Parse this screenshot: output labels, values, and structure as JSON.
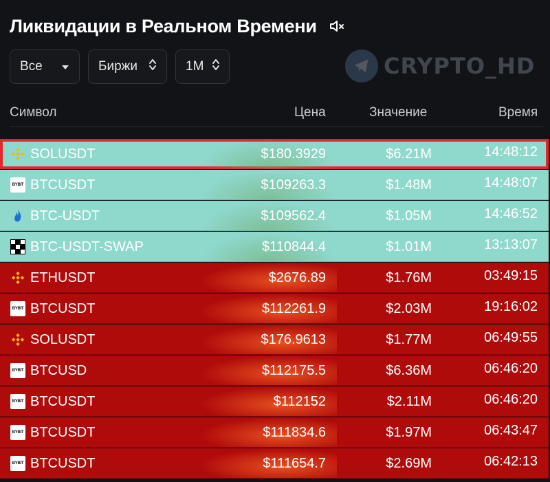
{
  "title": "Ликвидации в Реальном Времени",
  "sound_icon": "speaker-muted-icon",
  "filters": [
    {
      "label": "Все",
      "icon": "caret-down-icon"
    },
    {
      "label": "Биржи",
      "icon": "sort-updown-icon"
    },
    {
      "label": "1M",
      "icon": "sort-updown-icon"
    }
  ],
  "watermark": {
    "text": "CRYPTO_HD",
    "icon": "telegram-icon"
  },
  "columns": {
    "symbol": "Символ",
    "price": "Цена",
    "value": "Значение",
    "time": "Время"
  },
  "colors": {
    "long": "#8fd8cc",
    "short": "#b00b0b",
    "highlight_border": "#e8262a"
  },
  "rows": [
    {
      "exchange": "binance",
      "symbol": "SOLUSDT",
      "price": "$180.3929",
      "value": "$6.21M",
      "time": "14:48:12",
      "side": "long",
      "highlighted": true
    },
    {
      "exchange": "bybit",
      "symbol": "BTCUSDT",
      "price": "$109263.3",
      "value": "$1.48M",
      "time": "14:48:07",
      "side": "long"
    },
    {
      "exchange": "htx",
      "symbol": "BTC-USDT",
      "price": "$109562.4",
      "value": "$1.05M",
      "time": "14:46:52",
      "side": "long"
    },
    {
      "exchange": "okx",
      "symbol": "BTC-USDT-SWAP",
      "price": "$110844.4",
      "value": "$1.01M",
      "time": "13:13:07",
      "side": "long"
    },
    {
      "exchange": "binance",
      "symbol": "ETHUSDT",
      "price": "$2676.89",
      "value": "$1.76M",
      "time": "03:49:15",
      "side": "short"
    },
    {
      "exchange": "bybit",
      "symbol": "BTCUSDT",
      "price": "$112261.9",
      "value": "$2.03M",
      "time": "19:16:02",
      "side": "short"
    },
    {
      "exchange": "binance",
      "symbol": "SOLUSDT",
      "price": "$176.9613",
      "value": "$1.77M",
      "time": "06:49:55",
      "side": "short"
    },
    {
      "exchange": "bybit",
      "symbol": "BTCUSD",
      "price": "$112175.5",
      "value": "$6.36M",
      "time": "06:46:20",
      "side": "short"
    },
    {
      "exchange": "bybit",
      "symbol": "BTCUSDT",
      "price": "$112152",
      "value": "$2.11M",
      "time": "06:46:20",
      "side": "short"
    },
    {
      "exchange": "bybit",
      "symbol": "BTCUSDT",
      "price": "$111834.6",
      "value": "$1.97M",
      "time": "06:43:47",
      "side": "short"
    },
    {
      "exchange": "bybit",
      "symbol": "BTCUSDT",
      "price": "$111654.7",
      "value": "$2.69M",
      "time": "06:42:13",
      "side": "short"
    }
  ]
}
